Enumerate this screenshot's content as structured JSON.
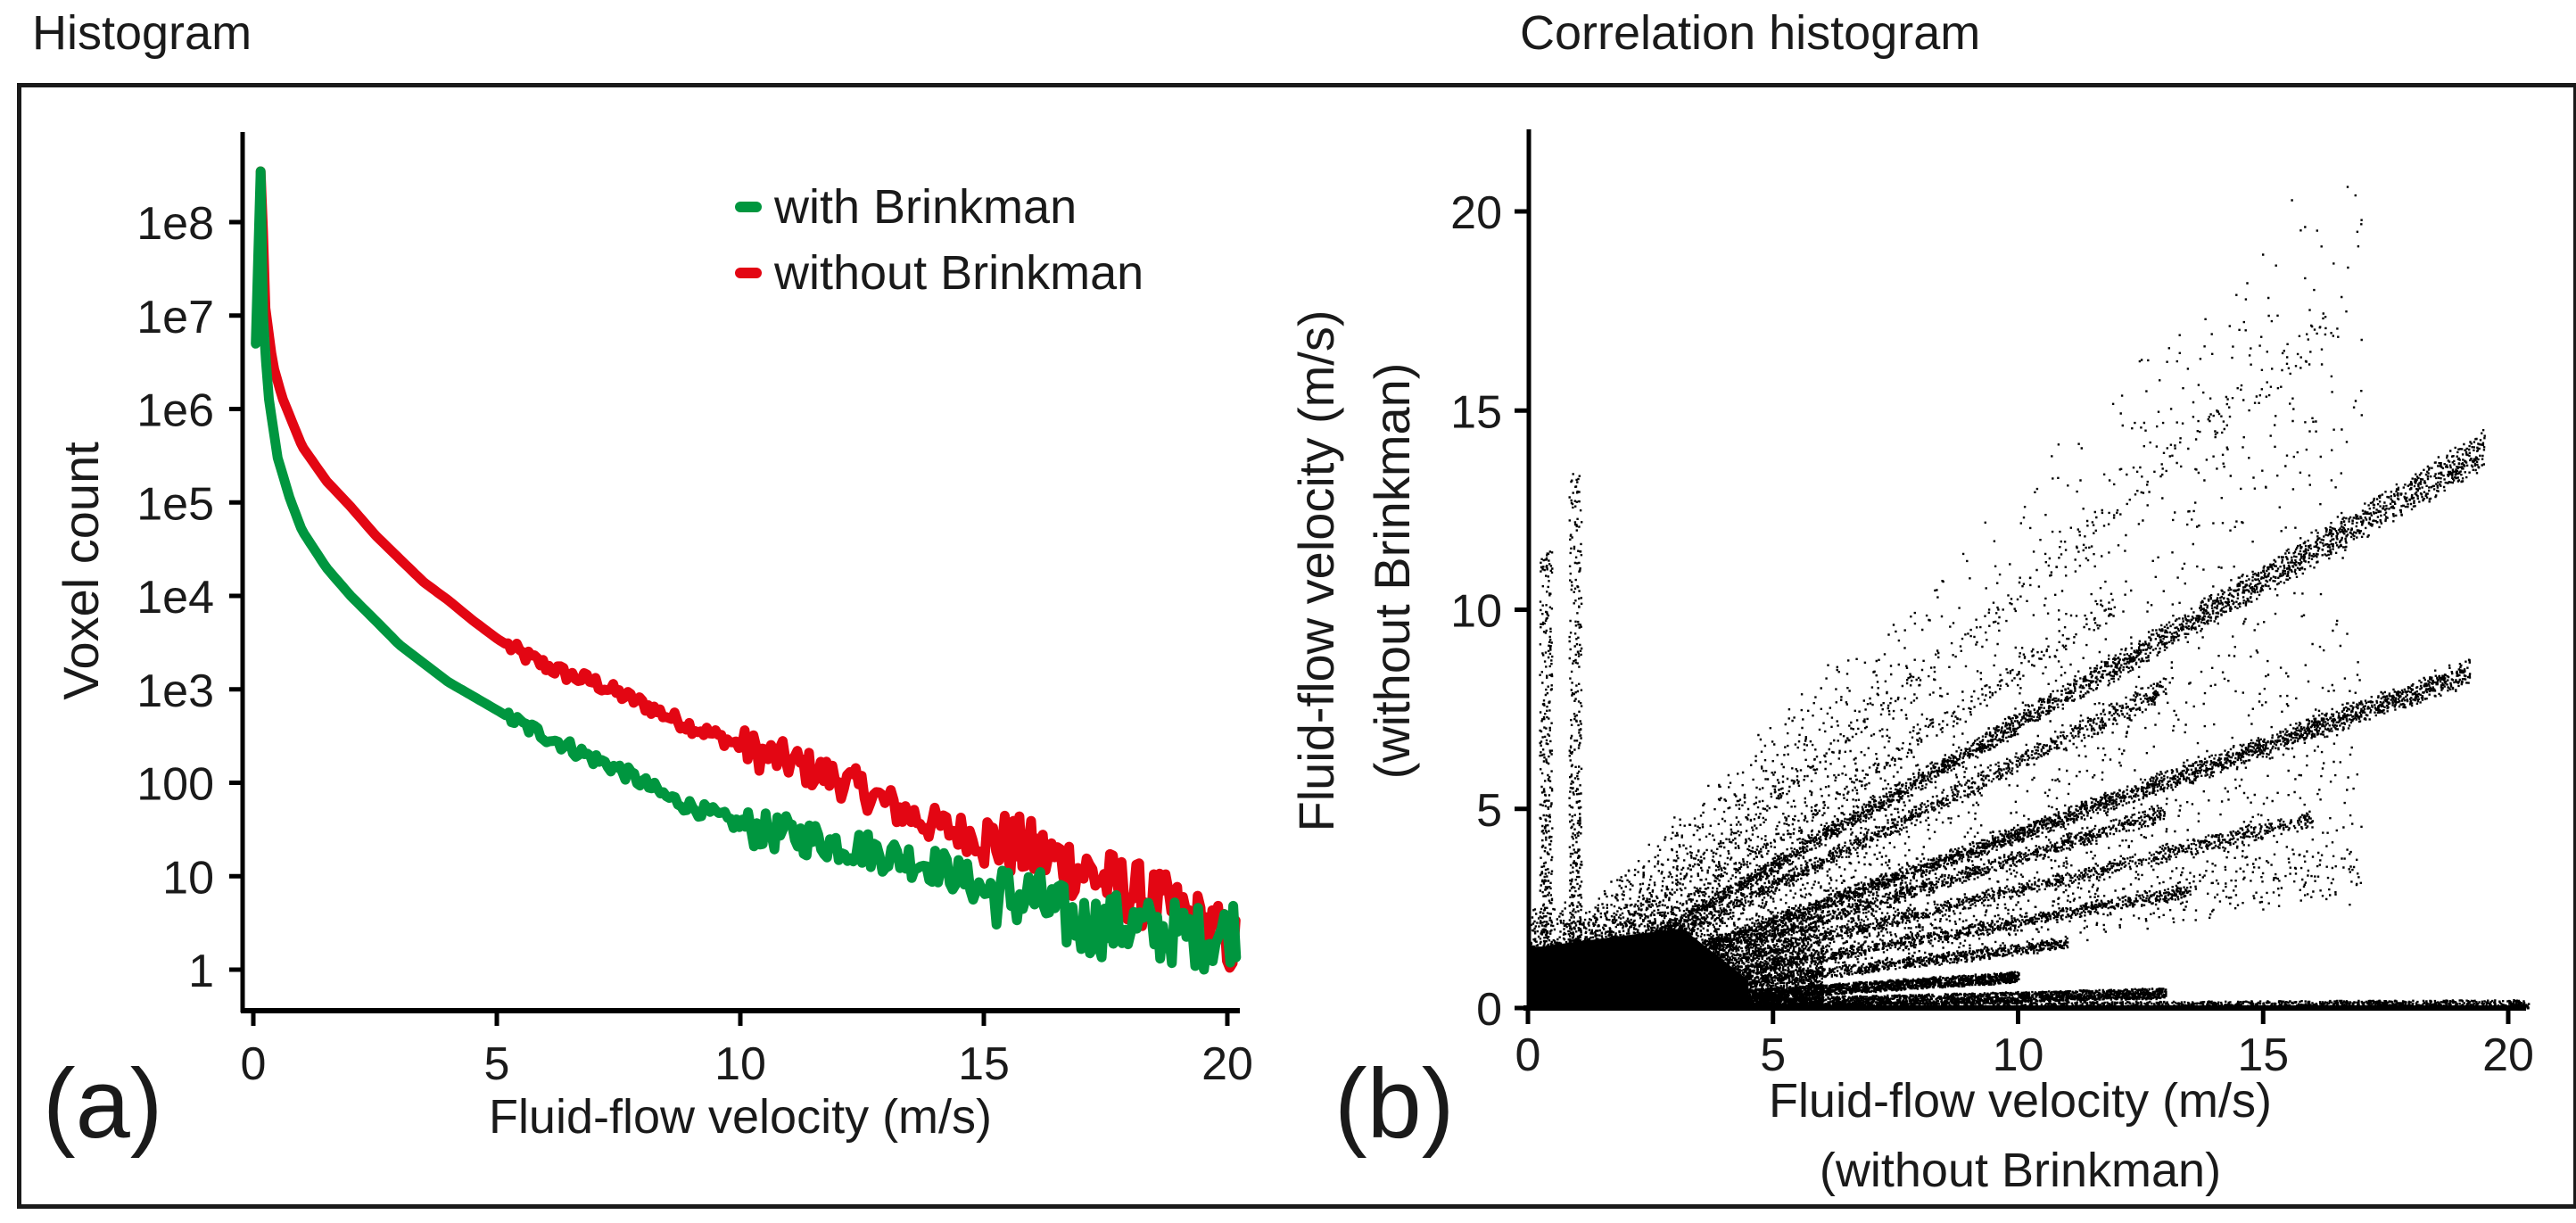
{
  "panels": {
    "a": {
      "panel_title": "Histogram",
      "panel_letter": "(a)"
    },
    "b": {
      "panel_title": "Correlation histogram",
      "panel_letter": "(b)"
    }
  },
  "colors": {
    "with_brinkman": "#00963f",
    "without_brinkman": "#e30613",
    "axis": "#000000",
    "scatter": "#000000"
  },
  "chart_data": [
    {
      "type": "line",
      "title": "Histogram",
      "xlabel": "Fluid-flow velocity (m/s)",
      "ylabel": "Voxel count",
      "xscale": "linear",
      "yscale": "log",
      "xlim": [
        0,
        20
      ],
      "ylim": [
        1,
        100000000
      ],
      "xticks": [
        0,
        5,
        10,
        15,
        20
      ],
      "xtick_labels": [
        "0",
        "5",
        "10",
        "15",
        "20"
      ],
      "yticks": [
        1,
        10,
        100,
        1000,
        10000,
        100000,
        1000000,
        10000000,
        100000000
      ],
      "ytick_labels": [
        "1",
        "10",
        "100",
        "1e3",
        "1e4",
        "1e5",
        "1e6",
        "1e7",
        "1e8"
      ],
      "grid": false,
      "legend_position": "top-right",
      "series": [
        {
          "name": "with Brinkman",
          "color": "#00963f",
          "x": [
            0.05,
            0.15,
            0.2,
            0.3,
            0.5,
            0.75,
            1,
            1.5,
            2,
            2.5,
            3,
            3.5,
            4,
            4.5,
            5,
            5.5,
            6,
            6.5,
            7,
            7.5,
            8,
            8.5,
            9,
            9.5,
            10,
            10.5,
            11,
            11.5,
            12,
            12.5,
            13,
            13.5,
            14,
            14.5,
            15,
            15.5,
            16,
            16.5,
            17,
            17.5,
            18,
            18.5,
            19,
            19.5,
            20,
            20.2
          ],
          "y": [
            5000000,
            350000000,
            10000000,
            1500000,
            300000,
            110000,
            50000,
            20000,
            10000,
            5500,
            3000,
            1900,
            1200,
            850,
            600,
            420,
            320,
            240,
            180,
            140,
            100,
            70,
            55,
            45,
            35,
            30,
            28,
            25,
            22,
            20,
            17,
            15,
            13,
            10,
            7,
            6,
            6,
            4,
            3,
            3,
            3,
            2.5,
            2.5,
            2.2,
            2.5,
            3
          ]
        },
        {
          "name": "without Brinkman",
          "color": "#e30613",
          "x": [
            0.15,
            0.2,
            0.25,
            0.4,
            0.6,
            1,
            1.5,
            2,
            2.5,
            3,
            3.5,
            4,
            4.5,
            5,
            5.5,
            6,
            6.5,
            7,
            7.5,
            8,
            8.5,
            9,
            9.5,
            10,
            10.5,
            11,
            11.5,
            12,
            12.5,
            13,
            13.5,
            14,
            14.5,
            15,
            15.5,
            16,
            16.5,
            17,
            17.5,
            18,
            18.5,
            19,
            19.5,
            20,
            20.2
          ],
          "y": [
            350000000,
            80000000,
            12000000,
            3000000,
            1300000,
            400000,
            170000,
            90000,
            45000,
            25000,
            14000,
            9000,
            5500,
            3500,
            2400,
            1800,
            1400,
            1200,
            900,
            700,
            520,
            400,
            320,
            250,
            200,
            170,
            135,
            110,
            85,
            60,
            45,
            35,
            30,
            25,
            22,
            18,
            15,
            12,
            9,
            7,
            5.5,
            4,
            3,
            2,
            1.7
          ]
        }
      ]
    },
    {
      "type": "scatter",
      "title": "Correlation histogram",
      "xlabel": "Fluid-flow velocity (m/s)",
      "xlabel_line2": "(without Brinkman)",
      "ylabel": "Fluid-flow velocity (m/s)",
      "ylabel_line2": "(without Brinkman)",
      "xlim": [
        0,
        20.5
      ],
      "ylim": [
        0,
        22
      ],
      "xticks": [
        0,
        5,
        10,
        15,
        20
      ],
      "xtick_labels": [
        "0",
        "5",
        "10",
        "15",
        "20"
      ],
      "yticks": [
        0,
        5,
        10,
        15,
        20
      ],
      "ytick_labels": [
        "0",
        "5",
        "10",
        "15",
        "20"
      ],
      "grid": false,
      "dense_core": {
        "x_max": 4.5,
        "y_max": 2.0
      },
      "ray_bands": [
        {
          "slope": 1.05,
          "x_max": 16.5,
          "density": "sparse"
        },
        {
          "slope": 0.85,
          "x_max": 12.0,
          "density": "sparse"
        },
        {
          "slope": 0.72,
          "x_max": 19.5,
          "density": "dense"
        },
        {
          "slope": 0.62,
          "x_max": 13.0,
          "density": "medium"
        },
        {
          "slope": 0.44,
          "x_max": 19.2,
          "density": "dense"
        },
        {
          "slope": 0.38,
          "x_max": 13.0,
          "density": "medium"
        },
        {
          "slope": 0.3,
          "x_max": 16.0,
          "density": "medium"
        },
        {
          "slope": 0.22,
          "x_max": 13.5,
          "density": "medium"
        },
        {
          "slope": 0.15,
          "x_max": 11.0,
          "density": "medium"
        },
        {
          "slope": 0.08,
          "x_max": 10.0,
          "density": "dense"
        },
        {
          "slope": 0.03,
          "x_max": 13.0,
          "density": "dense"
        },
        {
          "slope": 0.005,
          "x_max": 20.4,
          "density": "dense"
        }
      ],
      "vertical_bands": [
        {
          "x": 0.35,
          "y_max": 11.5
        },
        {
          "x": 0.95,
          "y_max": 13.5
        }
      ]
    }
  ]
}
